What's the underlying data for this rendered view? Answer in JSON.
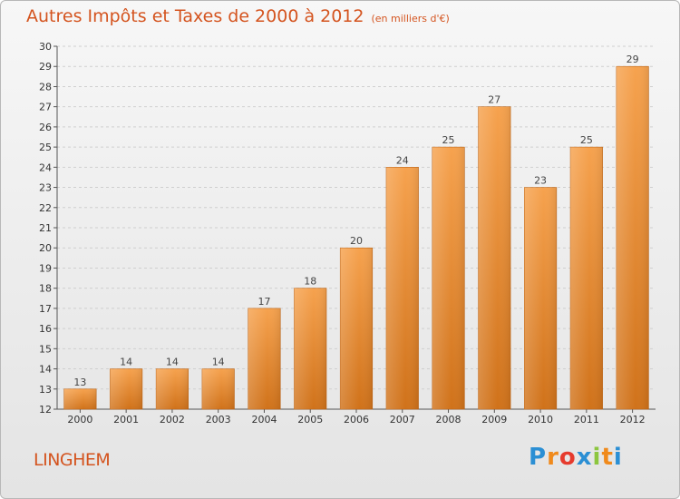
{
  "title": "Autres Impôts et Taxes de 2000 à 2012",
  "subtitle": "(en milliers d'€)",
  "commune": "LINGHEM",
  "logo": {
    "text": "Proxiti",
    "letters": [
      "P",
      "r",
      "o",
      "x",
      "i",
      "t",
      "i"
    ],
    "letter_colors": [
      "#2b8fd4",
      "#f08a1c",
      "#e63b2e",
      "#2b8fd4",
      "#8cc63f",
      "#f08a1c",
      "#2b8fd4"
    ]
  },
  "colors": {
    "title": "#d4541f",
    "bar_top": "#f6a24e",
    "bar_bottom": "#d0721a",
    "grid": "#cfcfcf"
  },
  "chart_data": {
    "type": "bar",
    "title": "Autres Impôts et Taxes de 2000 à 2012",
    "subtitle": "(en milliers d'€)",
    "xlabel": "",
    "ylabel": "",
    "categories": [
      "2000",
      "2001",
      "2002",
      "2003",
      "2004",
      "2005",
      "2006",
      "2007",
      "2008",
      "2009",
      "2010",
      "2011",
      "2012"
    ],
    "values": [
      13,
      14,
      14,
      14,
      17,
      18,
      20,
      24,
      25,
      27,
      23,
      25,
      29
    ],
    "ylim": [
      12,
      30
    ],
    "yticks": [
      12,
      13,
      14,
      15,
      16,
      17,
      18,
      19,
      20,
      21,
      22,
      23,
      24,
      25,
      26,
      27,
      28,
      29,
      30
    ],
    "grid": "horizontal dashed",
    "data_labels": true
  }
}
